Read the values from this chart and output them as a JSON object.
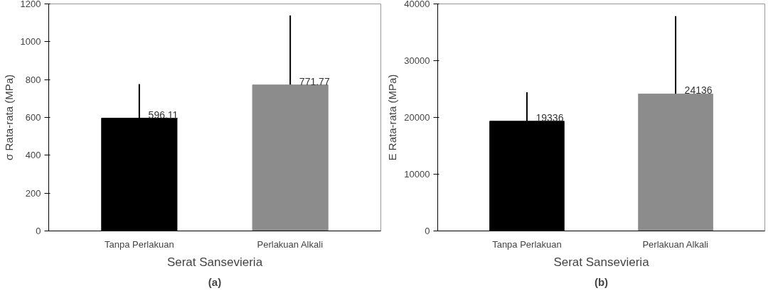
{
  "chart_data": [
    {
      "type": "bar",
      "categories": [
        "Tanpa Perlakuan",
        "Perlakuan Alkali"
      ],
      "values": [
        596.11,
        771.77
      ],
      "colors": [
        "#000000",
        "#8c8c8c"
      ],
      "errors": [
        180,
        367
      ],
      "value_labels": [
        "596.11",
        "771.77"
      ],
      "ylabel": "σ Rata-rata (MPa)",
      "xlabel": "Serat Sansevieria",
      "ylim": [
        0,
        1200
      ],
      "yticks": [
        0,
        200,
        400,
        600,
        800,
        1000,
        1200
      ],
      "grid": false,
      "annotations": [
        "(a)"
      ]
    },
    {
      "type": "bar",
      "categories": [
        "Tanpa Perlakuan",
        "Perlakuan Alkali"
      ],
      "values": [
        19336,
        24136
      ],
      "colors": [
        "#000000",
        "#8c8c8c"
      ],
      "errors": [
        5100,
        13700
      ],
      "value_labels": [
        "19336",
        "24136"
      ],
      "ylabel": "E Rata-rata (MPa)",
      "xlabel": "Serat Sansevieria",
      "ylim": [
        0,
        40000
      ],
      "yticks": [
        0,
        10000,
        20000,
        30000,
        40000
      ],
      "grid": false,
      "annotations": [
        "(b)"
      ]
    }
  ]
}
